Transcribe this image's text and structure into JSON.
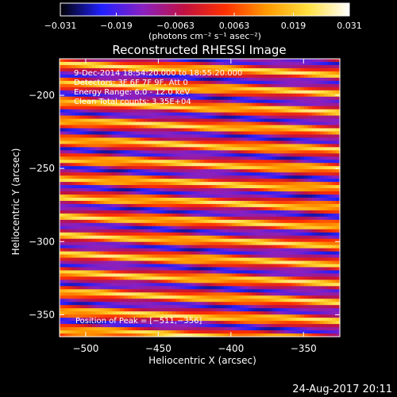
{
  "chart_data": {
    "type": "heatmap",
    "title": "Reconstructed RHESSI Image",
    "xlabel": "Heliocentric X (arcsec)",
    "ylabel": "Heliocentric Y (arcsec)",
    "xlim": [
      -518,
      -325
    ],
    "ylim": [
      -365,
      -175
    ],
    "x_ticks": [
      -500,
      -450,
      -400,
      -350
    ],
    "y_ticks": [
      -200,
      -250,
      -300,
      -350
    ],
    "x_tick_labels": [
      "−500",
      "−450",
      "−400",
      "−350"
    ],
    "y_tick_labels": [
      "−200",
      "−250",
      "−300",
      "−350"
    ],
    "colorbar": {
      "range": [
        -0.031,
        0.031
      ],
      "tick_values": [
        -0.031,
        -0.019,
        -0.0063,
        0.0063,
        0.019,
        0.031
      ],
      "tick_labels": [
        "−0.031",
        "−0.019",
        "−0.0063",
        "0.0063",
        "0.019",
        "0.031"
      ],
      "units_line": "(photons cm⁻² s⁻¹ asec⁻²)",
      "colormap": [
        "#000000",
        "#2020ff",
        "#8a20c0",
        "#c01040",
        "#ff3000",
        "#ff9a00",
        "#ffe040",
        "#ffffff"
      ]
    },
    "annotations": [
      "9-Dec-2014 18:54:20.000 to 18:55:20.000",
      "Detectors: 3F 6F 7F 9F, Att 0",
      "Energy Range: 6.0 - 12.0 keV",
      "Clean     Total counts: 3.35E+04"
    ],
    "peak_annotation": "Position of Peak = [−511,−356]",
    "peak_position": [
      -511,
      -356
    ],
    "total_counts": 33500,
    "pattern": {
      "description_values": "diagonal stripe pattern of alternating positive/negative flux",
      "stripe_period_arcsec": 13,
      "stripe_slope_arcsec_per_arcsec": 0.035,
      "peak_value": 0.031,
      "min_value": -0.031
    }
  },
  "footer": {
    "date": "24-Aug-2017 20:11"
  }
}
